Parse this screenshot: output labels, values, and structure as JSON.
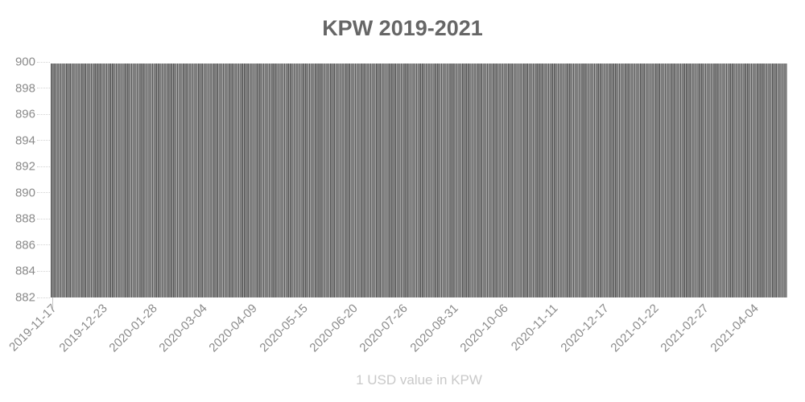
{
  "chart_data": {
    "type": "bar",
    "title": "KPW 2019-2021",
    "caption": "1 USD value in KPW",
    "xlabel": "",
    "ylabel": "",
    "ylim": [
      882,
      900
    ],
    "y_ticks": [
      900,
      898,
      896,
      894,
      892,
      890,
      888,
      886,
      884,
      882
    ],
    "x_tick_labels": [
      "2019-11-17",
      "2019-12-23",
      "2020-01-28",
      "2020-03-04",
      "2020-04-09",
      "2020-05-15",
      "2020-06-20",
      "2020-07-26",
      "2020-08-31",
      "2020-10-06",
      "2020-11-11",
      "2020-12-17",
      "2021-01-22",
      "2021-02-27",
      "2021-04-04"
    ],
    "x_tick_interval_days": 36,
    "grid": "dotted-y-stubs",
    "legend": "none",
    "series": [
      {
        "name": "1 USD value in KPW",
        "frequency": "daily",
        "bar_count": 530,
        "approx_value": 899.9,
        "min_value": 899.8,
        "max_value": 900,
        "baseline": 882
      }
    ],
    "colors": {
      "bar_dark": "#575757",
      "bar_light": "#a6a6a6",
      "title": "#666666",
      "tick_label": "#8a8a8a",
      "caption": "#c9c9c9",
      "grid": "#d2d2d2"
    }
  }
}
